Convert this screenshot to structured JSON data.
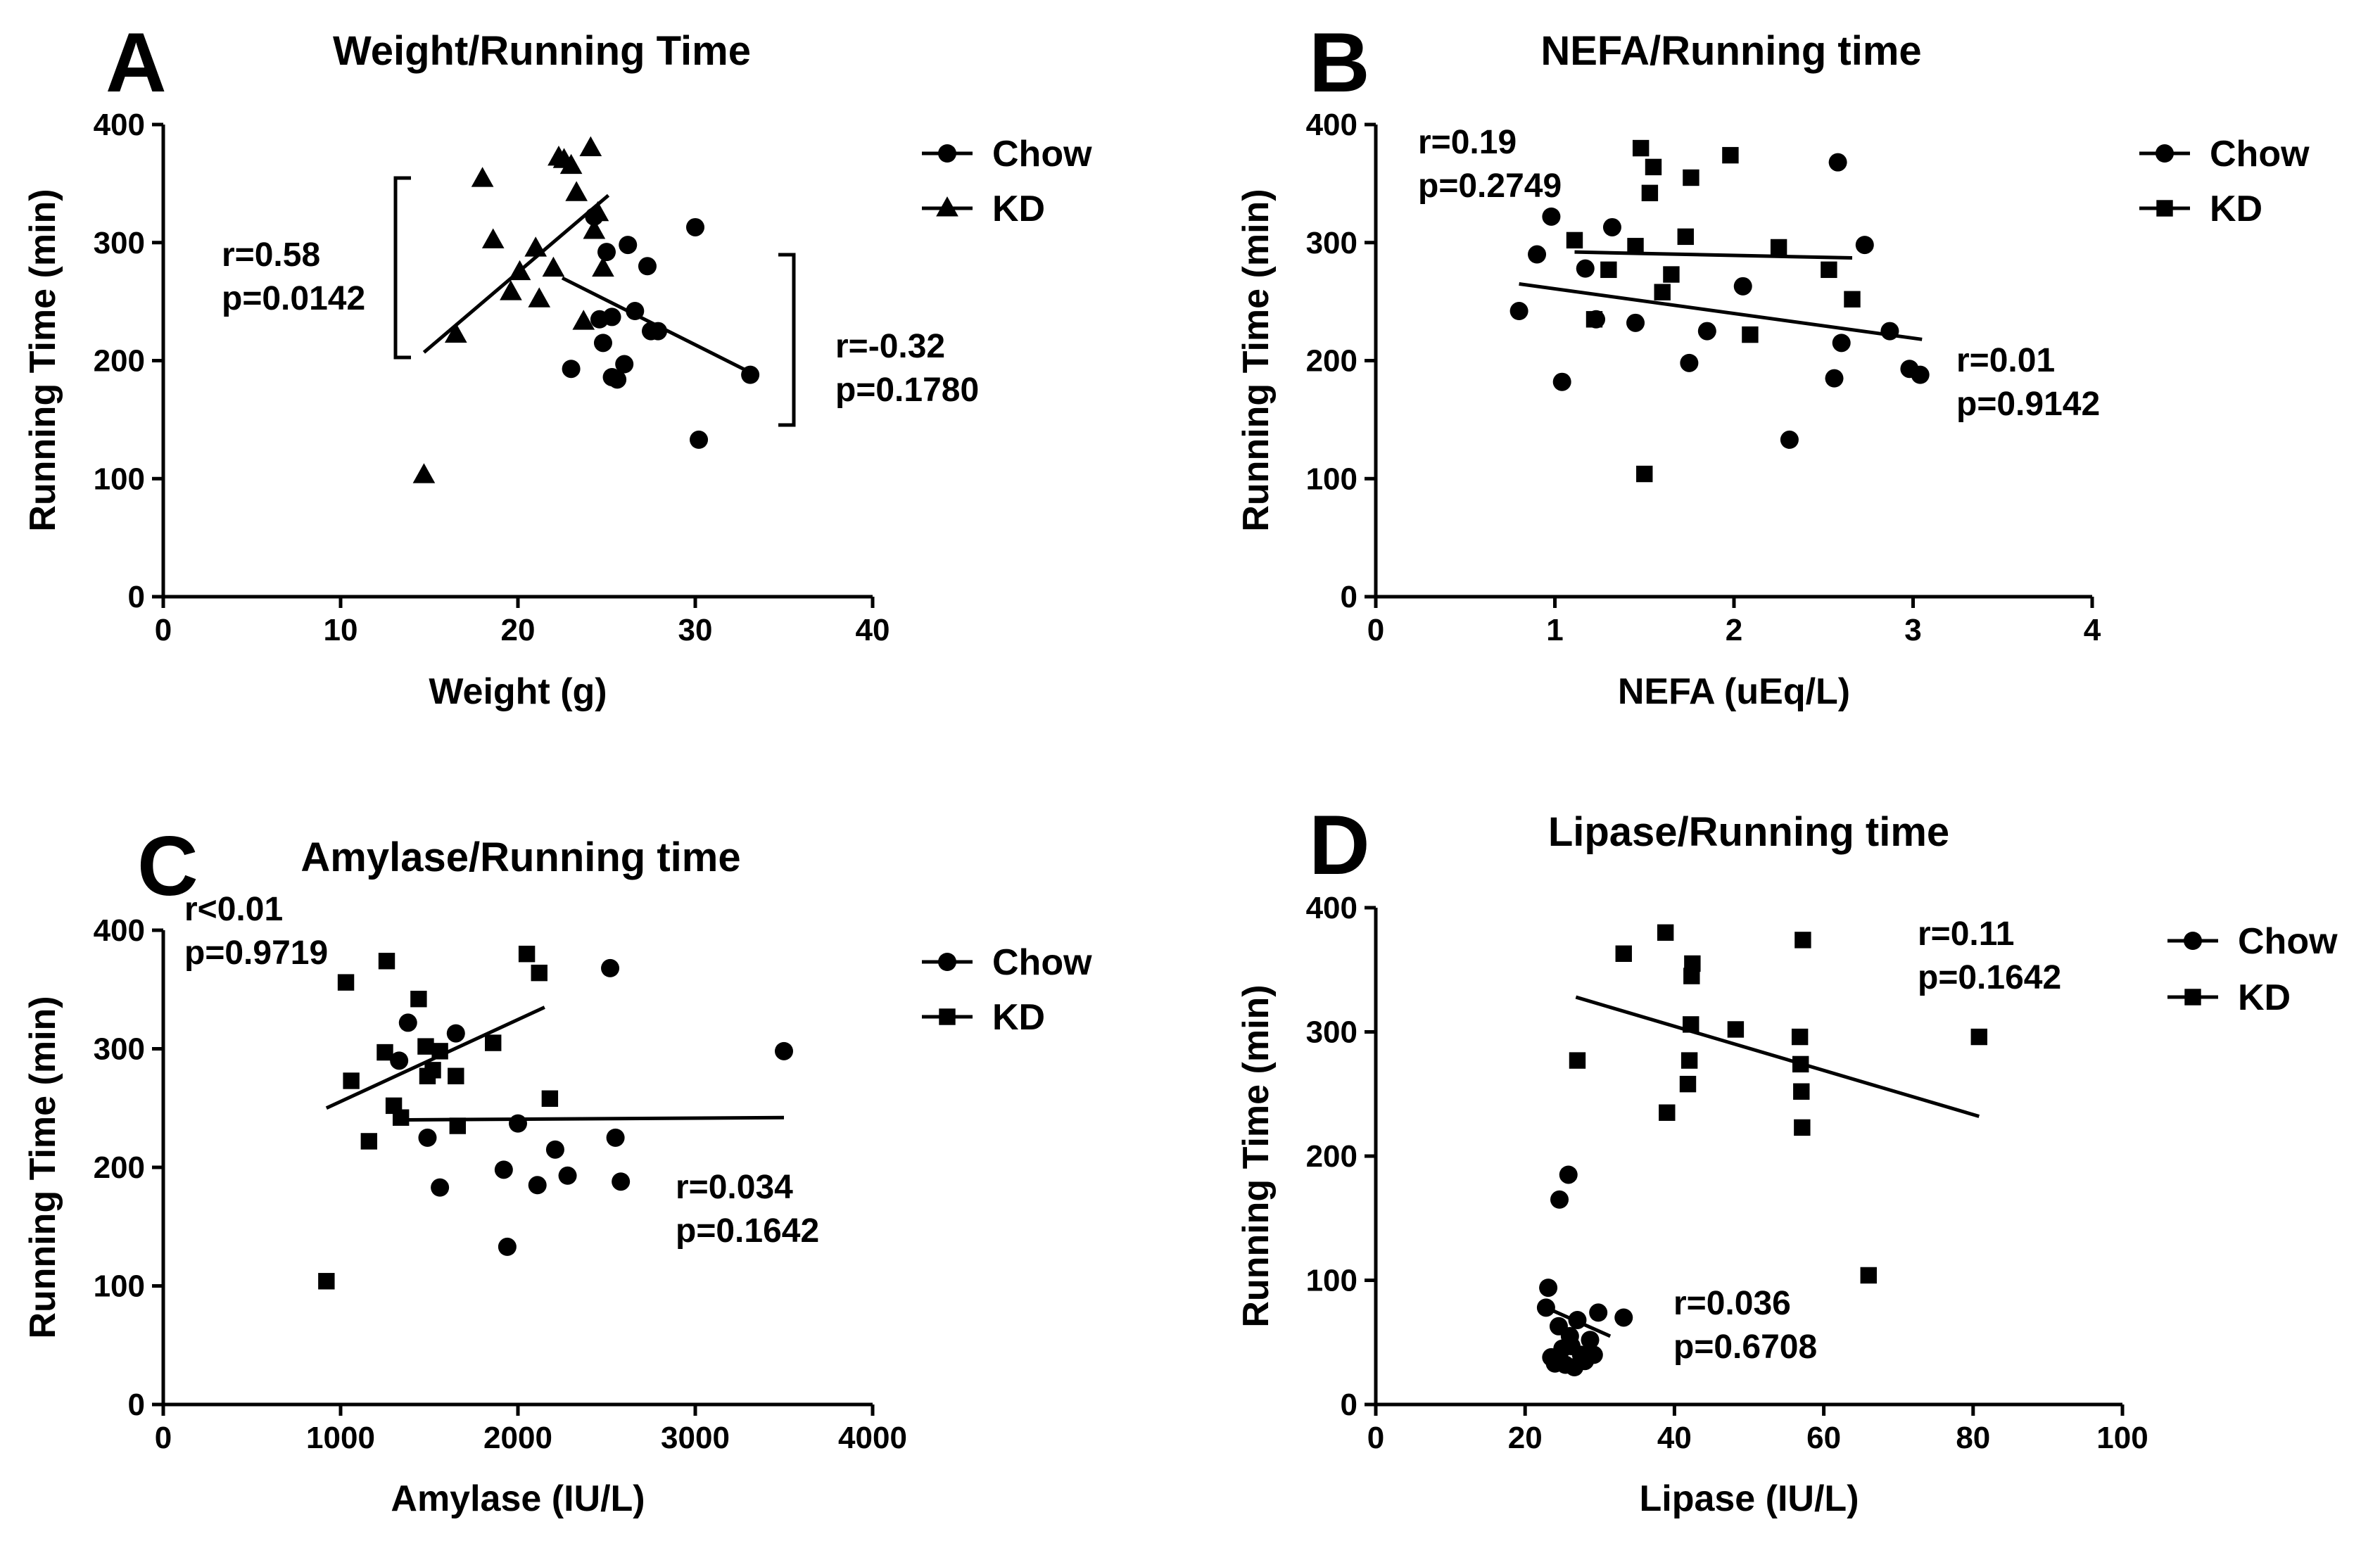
{
  "colors": {
    "ink": "#000000",
    "background": "#ffffff"
  },
  "chart_data": [
    {
      "panel": "A",
      "type": "scatter",
      "title": "Weight/Running Time",
      "xlabel": "Weight (g)",
      "ylabel": "Running Time (min)",
      "xlim": [
        0,
        40
      ],
      "ylim": [
        0,
        400
      ],
      "xticks": [
        0,
        10,
        20,
        30,
        40
      ],
      "yticks": [
        0,
        100,
        200,
        300,
        400
      ],
      "legend_position": "right",
      "series": [
        {
          "name": "Chow",
          "marker": "circle",
          "points": [
            [
              23.0,
              193
            ],
            [
              24.3,
              322
            ],
            [
              24.6,
              235
            ],
            [
              24.8,
              215
            ],
            [
              25.0,
              292
            ],
            [
              25.3,
              237
            ],
            [
              25.3,
              186
            ],
            [
              25.6,
              184
            ],
            [
              26.0,
              197
            ],
            [
              26.2,
              298
            ],
            [
              26.6,
              242
            ],
            [
              27.3,
              280
            ],
            [
              27.5,
              225
            ],
            [
              27.9,
              225
            ],
            [
              30.0,
              313
            ],
            [
              30.2,
              133
            ],
            [
              33.1,
              188
            ]
          ],
          "fit": [
            [
              22.5,
              270
            ],
            [
              33.1,
              190
            ]
          ]
        },
        {
          "name": "KD",
          "marker": "triangle",
          "points": [
            [
              14.7,
              103
            ],
            [
              16.5,
              222
            ],
            [
              18.0,
              354
            ],
            [
              18.6,
              302
            ],
            [
              19.6,
              258
            ],
            [
              20.1,
              275
            ],
            [
              21.0,
              295
            ],
            [
              21.2,
              252
            ],
            [
              22.0,
              278
            ],
            [
              22.3,
              372
            ],
            [
              22.6,
              370
            ],
            [
              23.0,
              365
            ],
            [
              23.3,
              342
            ],
            [
              23.7,
              233
            ],
            [
              24.1,
              380
            ],
            [
              24.3,
              310
            ],
            [
              24.5,
              325
            ],
            [
              24.8,
              278
            ]
          ],
          "fit": [
            [
              14.7,
              207
            ],
            [
              25.1,
              340
            ]
          ]
        }
      ],
      "annotations": [
        {
          "lines": [
            "r=0.58",
            "p=0.0142"
          ]
        },
        {
          "lines": [
            "r=-0.32",
            "p=0.1780"
          ]
        }
      ]
    },
    {
      "panel": "B",
      "type": "scatter",
      "title": "NEFA/Running time",
      "xlabel": "NEFA (uEq/L)",
      "ylabel": "Running Time (min)",
      "xlim": [
        0,
        4
      ],
      "ylim": [
        0,
        400
      ],
      "xticks": [
        0,
        1,
        2,
        3,
        4
      ],
      "yticks": [
        0,
        100,
        200,
        300,
        400
      ],
      "legend_position": "right",
      "series": [
        {
          "name": "Chow",
          "marker": "circle",
          "points": [
            [
              0.8,
              242
            ],
            [
              0.9,
              290
            ],
            [
              0.98,
              322
            ],
            [
              1.04,
              182
            ],
            [
              1.17,
              278
            ],
            [
              1.23,
              235
            ],
            [
              1.32,
              313
            ],
            [
              1.45,
              232
            ],
            [
              1.75,
              198
            ],
            [
              1.85,
              225
            ],
            [
              2.05,
              263
            ],
            [
              2.31,
              133
            ],
            [
              2.56,
              185
            ],
            [
              2.58,
              368
            ],
            [
              2.6,
              215
            ],
            [
              2.73,
              298
            ],
            [
              2.87,
              225
            ],
            [
              2.98,
              193
            ],
            [
              3.04,
              188
            ]
          ],
          "fit": [
            [
              0.8,
              265
            ],
            [
              3.05,
              218
            ]
          ]
        },
        {
          "name": "KD",
          "marker": "square",
          "points": [
            [
              1.11,
              302
            ],
            [
              1.22,
              235
            ],
            [
              1.3,
              277
            ],
            [
              1.45,
              297
            ],
            [
              1.48,
              380
            ],
            [
              1.5,
              104
            ],
            [
              1.53,
              342
            ],
            [
              1.55,
              364
            ],
            [
              1.6,
              258
            ],
            [
              1.65,
              273
            ],
            [
              1.73,
              305
            ],
            [
              1.76,
              355
            ],
            [
              1.98,
              374
            ],
            [
              2.09,
              222
            ],
            [
              2.25,
              296
            ],
            [
              2.53,
              277
            ],
            [
              2.66,
              252
            ]
          ],
          "fit": [
            [
              1.11,
              292
            ],
            [
              2.66,
              287
            ]
          ]
        }
      ],
      "annotations": [
        {
          "lines": [
            "r=0.19",
            "p=0.2749"
          ]
        },
        {
          "lines": [
            "r=0.01",
            "p=0.9142"
          ]
        }
      ]
    },
    {
      "panel": "C",
      "type": "scatter",
      "title": "Amylase/Running time",
      "xlabel": "Amylase (IU/L)",
      "ylabel": "Running Time (min)",
      "xlim": [
        0,
        4000
      ],
      "ylim": [
        0,
        400
      ],
      "xticks": [
        0,
        1000,
        2000,
        3000,
        4000
      ],
      "yticks": [
        0,
        100,
        200,
        300,
        400
      ],
      "legend_position": "right",
      "series": [
        {
          "name": "Chow",
          "marker": "circle",
          "points": [
            [
              1330,
              290
            ],
            [
              1380,
              322
            ],
            [
              1490,
              225
            ],
            [
              1560,
              183
            ],
            [
              1650,
              313
            ],
            [
              1920,
              198
            ],
            [
              1940,
              133
            ],
            [
              2000,
              237
            ],
            [
              2110,
              185
            ],
            [
              2210,
              215
            ],
            [
              2280,
              193
            ],
            [
              2520,
              368
            ],
            [
              2550,
              225
            ],
            [
              2580,
              188
            ],
            [
              3500,
              298
            ]
          ],
          "fit": [
            [
              920,
              250
            ],
            [
              2150,
              335
            ]
          ]
        },
        {
          "name": "KD",
          "marker": "square",
          "points": [
            [
              920,
              104
            ],
            [
              1030,
              356
            ],
            [
              1060,
              273
            ],
            [
              1160,
              222
            ],
            [
              1250,
              297
            ],
            [
              1260,
              374
            ],
            [
              1300,
              252
            ],
            [
              1340,
              242
            ],
            [
              1440,
              342
            ],
            [
              1480,
              302
            ],
            [
              1490,
              277
            ],
            [
              1520,
              282
            ],
            [
              1560,
              298
            ],
            [
              1650,
              277
            ],
            [
              1660,
              235
            ],
            [
              1860,
              305
            ],
            [
              2050,
              380
            ],
            [
              2120,
              364
            ],
            [
              2180,
              258
            ]
          ],
          "fit": [
            [
              1300,
              240
            ],
            [
              3500,
              242
            ]
          ]
        }
      ],
      "annotations": [
        {
          "lines": [
            "r<0.01",
            "p=0.9719"
          ]
        },
        {
          "lines": [
            "r=0.034",
            "p=0.1642"
          ]
        }
      ]
    },
    {
      "panel": "D",
      "type": "scatter",
      "title": "Lipase/Running time",
      "xlabel": "Lipase (IU/L)",
      "ylabel": "Running Time (min)",
      "xlim": [
        0,
        100
      ],
      "ylim": [
        0,
        400
      ],
      "xticks": [
        0,
        20,
        40,
        60,
        80,
        100
      ],
      "yticks": [
        0,
        100,
        200,
        300,
        400
      ],
      "legend_position": "right",
      "series": [
        {
          "name": "Chow",
          "marker": "circle",
          "points": [
            [
              22.8,
              78
            ],
            [
              23.1,
              94
            ],
            [
              23.5,
              38
            ],
            [
              24.0,
              33
            ],
            [
              24.5,
              63
            ],
            [
              24.6,
              165
            ],
            [
              25.0,
              45
            ],
            [
              25.4,
              32
            ],
            [
              25.8,
              185
            ],
            [
              26.0,
              55
            ],
            [
              26.2,
              47
            ],
            [
              26.6,
              30
            ],
            [
              27.0,
              68
            ],
            [
              27.5,
              40
            ],
            [
              28.0,
              35
            ],
            [
              28.7,
              52
            ],
            [
              29.2,
              40
            ],
            [
              29.8,
              74
            ],
            [
              33.2,
              70
            ]
          ],
          "fit": [
            [
              22.8,
              78
            ],
            [
              31.4,
              55
            ]
          ]
        },
        {
          "name": "KD",
          "marker": "square",
          "points": [
            [
              27.0,
              277
            ],
            [
              33.2,
              363
            ],
            [
              38.8,
              380
            ],
            [
              39.0,
              235
            ],
            [
              41.8,
              258
            ],
            [
              42.0,
              277
            ],
            [
              42.2,
              306
            ],
            [
              42.3,
              345
            ],
            [
              42.4,
              355
            ],
            [
              48.2,
              302
            ],
            [
              56.8,
              296
            ],
            [
              56.9,
              274
            ],
            [
              57.0,
              252
            ],
            [
              57.1,
              223
            ],
            [
              57.2,
              374
            ],
            [
              66.0,
              104
            ],
            [
              80.8,
              296
            ]
          ],
          "fit": [
            [
              26.8,
              328
            ],
            [
              80.8,
              232
            ]
          ]
        }
      ],
      "annotations": [
        {
          "lines": [
            "r=0.11",
            "p=0.1642"
          ]
        },
        {
          "lines": [
            "r=0.036",
            "p=0.6708"
          ]
        }
      ]
    }
  ]
}
